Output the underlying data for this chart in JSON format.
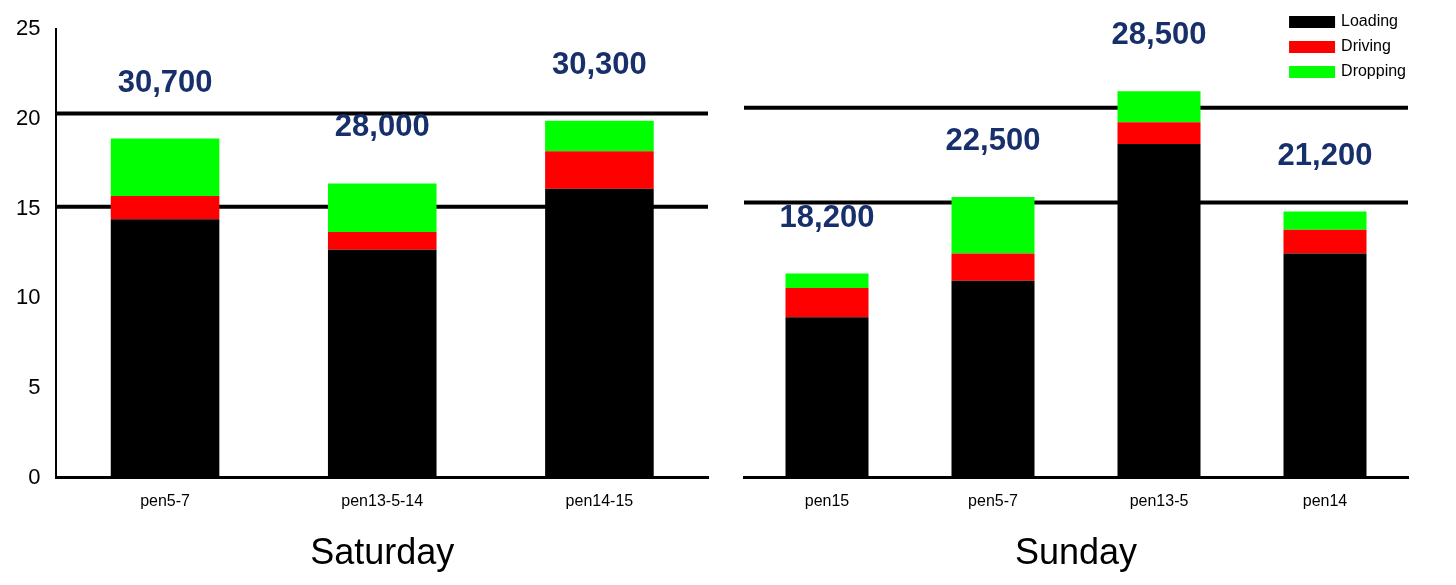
{
  "chart_data": [
    {
      "type": "bar",
      "stacked": true,
      "xlabel": "Saturday",
      "categories": [
        "pen5-7",
        "pen13-5-14",
        "pen14-15"
      ],
      "series": [
        {
          "color": "#000000",
          "values": [
            14.4,
            12.7,
            16.1
          ]
        },
        {
          "color": "#ff0000",
          "values": [
            1.3,
            1.0,
            2.1
          ]
        },
        {
          "color": "#00ff00",
          "values": [
            3.2,
            2.7,
            1.7
          ]
        }
      ],
      "ylim": [
        0,
        25
      ],
      "yticks": [
        0,
        5,
        10,
        15,
        20,
        25
      ],
      "grid": false,
      "legend": false,
      "ref_lines": [
        {
          "axis": "y",
          "value": 15.1,
          "color": "#000000"
        },
        {
          "axis": "y",
          "value": 20.3,
          "color": "#000000"
        }
      ],
      "annotations": [
        "30,700",
        "28,000",
        "30,300"
      ]
    },
    {
      "type": "bar",
      "stacked": true,
      "xlabel": "Sunday",
      "categories": [
        "pen15",
        "pen5-7",
        "pen13-5",
        "pen14"
      ],
      "series": [
        {
          "name": "Loading",
          "color": "#000000",
          "values": [
            8.8,
            10.8,
            18.3,
            12.3
          ]
        },
        {
          "name": "Driving",
          "color": "#ff0000",
          "values": [
            1.6,
            1.5,
            1.2,
            1.3
          ]
        },
        {
          "name": "Dropping",
          "color": "#00ff00",
          "values": [
            0.8,
            3.1,
            1.7,
            1.0
          ]
        }
      ],
      "ylim": [
        0,
        25
      ],
      "tick_labels": "x",
      "grid": false,
      "legend": "top right",
      "ref_lines": [
        {
          "axis": "y",
          "value": 15.1,
          "color": "#000000"
        },
        {
          "axis": "y",
          "value": 20.3,
          "color": "#000000"
        }
      ],
      "annotations": [
        "18,200",
        "22,500",
        "28,500",
        "21,200"
      ]
    }
  ]
}
